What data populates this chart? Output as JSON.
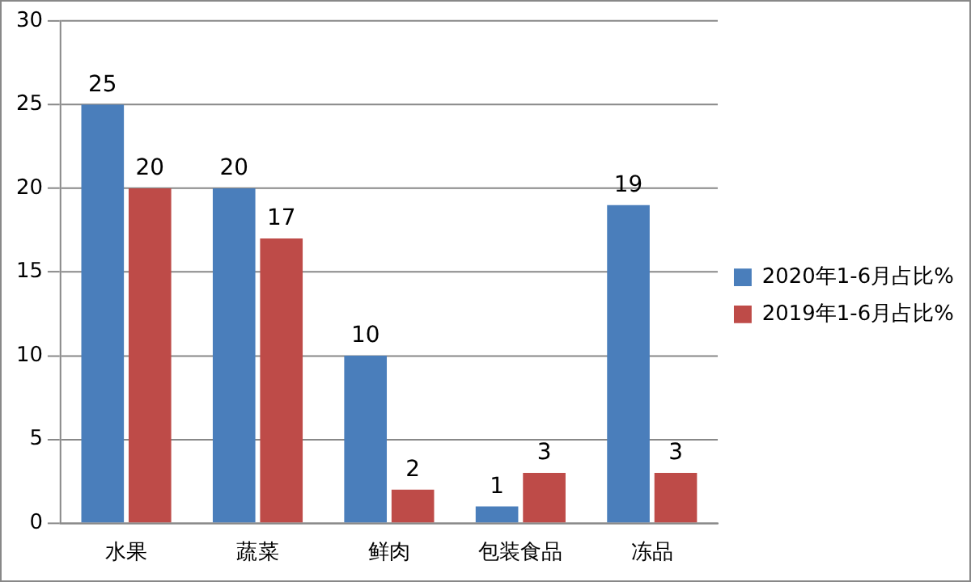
{
  "chart_data": {
    "type": "bar",
    "categories": [
      "水果",
      "蔬菜",
      "鲜肉",
      "包装食品",
      "冻品"
    ],
    "series": [
      {
        "name": "2020年1-6月占比%",
        "color": "#4a7ebb",
        "values": [
          25,
          20,
          10,
          1,
          19
        ]
      },
      {
        "name": "2019年1-6月占比%",
        "color": "#be4b48",
        "values": [
          20,
          17,
          2,
          3,
          3
        ]
      }
    ],
    "ylim": [
      0,
      30
    ],
    "yticks": [
      0,
      5,
      10,
      15,
      20,
      25,
      30
    ],
    "grid": "y",
    "legend": "right",
    "data_labels": true
  }
}
